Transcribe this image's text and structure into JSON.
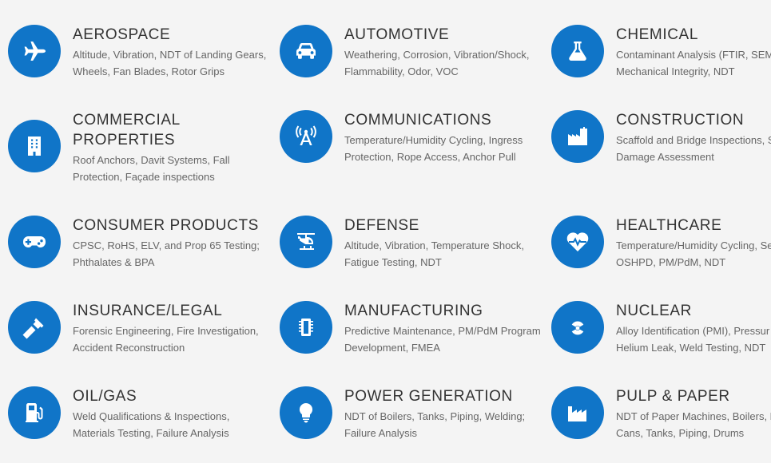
{
  "colors": {
    "icon_bg": "#1075c8",
    "title": "#333333",
    "desc": "#666666",
    "page_bg": "#f4f4f4"
  },
  "industries": [
    {
      "title": "AEROSPACE",
      "desc": "Altitude, Vibration, NDT of Landing Gears, Wheels, Fan Blades, Rotor Grips",
      "icon": "airplane-icon"
    },
    {
      "title": "AUTOMOTIVE",
      "desc": "Weathering, Corrosion, Vibration/Shock, Flammability, Odor, VOC",
      "icon": "car-icon"
    },
    {
      "title": "CHEMICAL",
      "desc": "Contaminant Analysis (FTIR, SEM",
      "desc2": "Mechanical Integrity, NDT",
      "icon": "flask-icon"
    },
    {
      "title": "COMMERCIAL PROPERTIES",
      "desc": "Roof Anchors, Davit Systems, Fall Protection, Façade inspections",
      "icon": "building-icon"
    },
    {
      "title": "COMMUNICATIONS",
      "desc": "Temperature/Humidity Cycling, Ingress Protection, Rope Access, Anchor Pull",
      "icon": "antenna-icon"
    },
    {
      "title": "CONSTRUCTION",
      "desc": "Scaffold and Bridge Inspections, S",
      "desc2": "Damage Assessment",
      "icon": "industry-icon"
    },
    {
      "title": "CONSUMER PRODUCTS",
      "desc": "CPSC, RoHS, ELV, and Prop 65 Testing; Phthalates & BPA",
      "icon": "gamepad-icon"
    },
    {
      "title": "DEFENSE",
      "desc": "Altitude, Vibration, Temperature Shock, Fatigue Testing, NDT",
      "icon": "helicopter-icon"
    },
    {
      "title": "HEALTHCARE",
      "desc": "Temperature/Humidity Cycling, Se",
      "desc2": "OSHPD, PM/PdM, NDT",
      "icon": "heartbeat-icon"
    },
    {
      "title": "INSURANCE/LEGAL",
      "desc": "Forensic Engineering, Fire Investigation, Accident Reconstruction",
      "icon": "gavel-icon"
    },
    {
      "title": "MANUFACTURING",
      "desc": "Predictive Maintenance, PM/PdM Program Development, FMEA",
      "icon": "chip-icon"
    },
    {
      "title": "NUCLEAR",
      "desc": "Alloy Identification (PMI), Pressur",
      "desc2": "Helium Leak, Weld Testing, NDT",
      "icon": "radiation-icon"
    },
    {
      "title": "OIL/GAS",
      "desc": "Weld Qualifications & Inspections, Materials Testing, Failure Analysis",
      "icon": "gas-pump-icon"
    },
    {
      "title": "POWER GENERATION",
      "desc": "NDT of Boilers, Tanks, Piping, Welding; Failure Analysis",
      "icon": "lightbulb-icon"
    },
    {
      "title": "PULP & PAPER",
      "desc": "NDT of Paper Machines, Boilers, E",
      "desc2": "Cans, Tanks, Piping, Drums",
      "icon": "factory-icon"
    }
  ]
}
